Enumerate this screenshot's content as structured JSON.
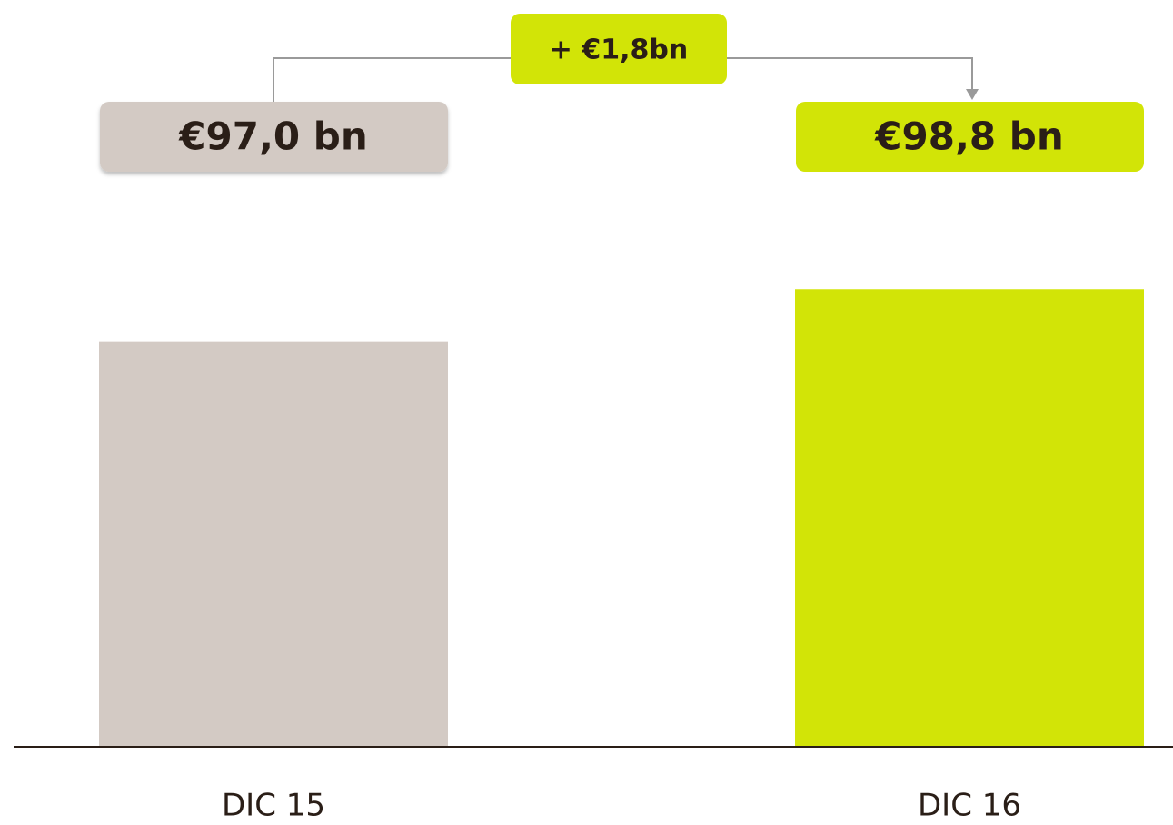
{
  "chart_data": {
    "type": "bar",
    "categories": [
      "DIC 15",
      "DIC 16"
    ],
    "values": [
      97.0,
      98.8
    ],
    "value_labels": [
      "€97,0 bn",
      "€98,8 bn"
    ],
    "colors": [
      "#d3cac4",
      "#d2e407"
    ],
    "annotation": "+ €1,8bn",
    "ylim": [
      83,
      100
    ]
  }
}
